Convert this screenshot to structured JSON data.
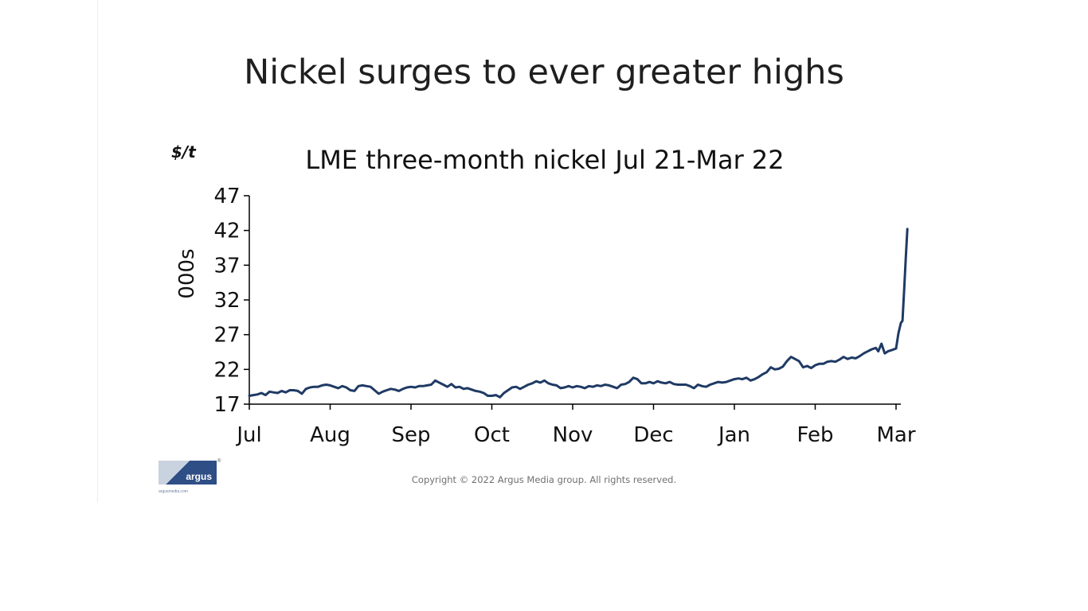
{
  "slide": {
    "title": "Nickel surges to ever greater highs",
    "copyright": "Copyright © 2022 Argus Media group. All rights reserved."
  },
  "logo": {
    "brand": "argus",
    "registered_mark": "®",
    "url": "argusmedia.com"
  },
  "colors": {
    "line": "#1f3a64",
    "axis": "#000000",
    "logo_blue": "#2f4e86"
  },
  "chart_data": {
    "type": "line",
    "title": "LME three-month nickel Jul 21-Mar 22",
    "unit_label": "$/t",
    "ylabel": "000s",
    "xlabel": "",
    "ylim": [
      17,
      47
    ],
    "yticks": [
      17,
      22,
      27,
      32,
      37,
      42,
      47
    ],
    "grid": false,
    "legend": "none",
    "x_tick_labels": [
      "Jul",
      "Aug",
      "Sep",
      "Oct",
      "Nov",
      "Dec",
      "Jan",
      "Feb",
      "Mar"
    ],
    "x_domain": [
      0,
      8.14
    ],
    "series": [
      {
        "values": [
          [
            0.0,
            18.2
          ],
          [
            0.05,
            18.3
          ],
          [
            0.1,
            18.4
          ],
          [
            0.15,
            18.6
          ],
          [
            0.2,
            18.3
          ],
          [
            0.25,
            18.8
          ],
          [
            0.3,
            18.7
          ],
          [
            0.35,
            18.6
          ],
          [
            0.4,
            18.9
          ],
          [
            0.45,
            18.7
          ],
          [
            0.5,
            19.0
          ],
          [
            0.55,
            19.0
          ],
          [
            0.6,
            18.9
          ],
          [
            0.65,
            18.5
          ],
          [
            0.7,
            19.2
          ],
          [
            0.75,
            19.4
          ],
          [
            0.8,
            19.5
          ],
          [
            0.85,
            19.5
          ],
          [
            0.9,
            19.7
          ],
          [
            0.95,
            19.8
          ],
          [
            1.0,
            19.7
          ],
          [
            1.05,
            19.5
          ],
          [
            1.1,
            19.3
          ],
          [
            1.15,
            19.6
          ],
          [
            1.2,
            19.4
          ],
          [
            1.25,
            19.0
          ],
          [
            1.3,
            18.9
          ],
          [
            1.35,
            19.6
          ],
          [
            1.4,
            19.7
          ],
          [
            1.45,
            19.6
          ],
          [
            1.5,
            19.5
          ],
          [
            1.55,
            19.0
          ],
          [
            1.6,
            18.5
          ],
          [
            1.65,
            18.8
          ],
          [
            1.7,
            19.0
          ],
          [
            1.75,
            19.2
          ],
          [
            1.8,
            19.1
          ],
          [
            1.85,
            18.9
          ],
          [
            1.9,
            19.2
          ],
          [
            1.95,
            19.4
          ],
          [
            2.0,
            19.5
          ],
          [
            2.05,
            19.4
          ],
          [
            2.1,
            19.6
          ],
          [
            2.15,
            19.6
          ],
          [
            2.2,
            19.7
          ],
          [
            2.25,
            19.8
          ],
          [
            2.3,
            20.4
          ],
          [
            2.35,
            20.1
          ],
          [
            2.4,
            19.8
          ],
          [
            2.45,
            19.5
          ],
          [
            2.5,
            19.9
          ],
          [
            2.55,
            19.4
          ],
          [
            2.6,
            19.5
          ],
          [
            2.65,
            19.2
          ],
          [
            2.7,
            19.3
          ],
          [
            2.75,
            19.1
          ],
          [
            2.8,
            18.9
          ],
          [
            2.85,
            18.8
          ],
          [
            2.9,
            18.6
          ],
          [
            2.95,
            18.2
          ],
          [
            3.0,
            18.2
          ],
          [
            3.05,
            18.3
          ],
          [
            3.1,
            18.0
          ],
          [
            3.15,
            18.6
          ],
          [
            3.2,
            19.0
          ],
          [
            3.25,
            19.4
          ],
          [
            3.3,
            19.5
          ],
          [
            3.35,
            19.2
          ],
          [
            3.4,
            19.5
          ],
          [
            3.45,
            19.8
          ],
          [
            3.5,
            20.0
          ],
          [
            3.55,
            20.3
          ],
          [
            3.6,
            20.1
          ],
          [
            3.65,
            20.4
          ],
          [
            3.7,
            20.0
          ],
          [
            3.75,
            19.8
          ],
          [
            3.8,
            19.7
          ],
          [
            3.85,
            19.3
          ],
          [
            3.9,
            19.4
          ],
          [
            3.95,
            19.6
          ],
          [
            4.0,
            19.4
          ],
          [
            4.05,
            19.6
          ],
          [
            4.1,
            19.5
          ],
          [
            4.15,
            19.3
          ],
          [
            4.2,
            19.6
          ],
          [
            4.25,
            19.5
          ],
          [
            4.3,
            19.7
          ],
          [
            4.35,
            19.6
          ],
          [
            4.4,
            19.8
          ],
          [
            4.45,
            19.7
          ],
          [
            4.5,
            19.5
          ],
          [
            4.55,
            19.3
          ],
          [
            4.6,
            19.8
          ],
          [
            4.65,
            19.9
          ],
          [
            4.7,
            20.2
          ],
          [
            4.75,
            20.8
          ],
          [
            4.8,
            20.6
          ],
          [
            4.85,
            20.0
          ],
          [
            4.9,
            20.0
          ],
          [
            4.95,
            20.2
          ],
          [
            5.0,
            20.0
          ],
          [
            5.05,
            20.3
          ],
          [
            5.1,
            20.1
          ],
          [
            5.15,
            20.0
          ],
          [
            5.2,
            20.2
          ],
          [
            5.25,
            19.9
          ],
          [
            5.3,
            19.8
          ],
          [
            5.35,
            19.8
          ],
          [
            5.4,
            19.8
          ],
          [
            5.45,
            19.6
          ],
          [
            5.5,
            19.3
          ],
          [
            5.55,
            19.8
          ],
          [
            5.6,
            19.6
          ],
          [
            5.65,
            19.5
          ],
          [
            5.7,
            19.8
          ],
          [
            5.75,
            20.0
          ],
          [
            5.8,
            20.2
          ],
          [
            5.85,
            20.1
          ],
          [
            5.9,
            20.2
          ],
          [
            5.95,
            20.4
          ],
          [
            6.0,
            20.6
          ],
          [
            6.05,
            20.7
          ],
          [
            6.1,
            20.6
          ],
          [
            6.15,
            20.8
          ],
          [
            6.2,
            20.4
          ],
          [
            6.25,
            20.6
          ],
          [
            6.3,
            20.9
          ],
          [
            6.35,
            21.3
          ],
          [
            6.4,
            21.6
          ],
          [
            6.45,
            22.3
          ],
          [
            6.5,
            22.0
          ],
          [
            6.55,
            22.1
          ],
          [
            6.6,
            22.4
          ],
          [
            6.65,
            23.2
          ],
          [
            6.7,
            23.8
          ],
          [
            6.75,
            23.5
          ],
          [
            6.8,
            23.2
          ],
          [
            6.85,
            22.3
          ],
          [
            6.9,
            22.5
          ],
          [
            6.95,
            22.2
          ],
          [
            7.0,
            22.6
          ],
          [
            7.05,
            22.8
          ],
          [
            7.1,
            22.8
          ],
          [
            7.15,
            23.1
          ],
          [
            7.2,
            23.2
          ],
          [
            7.25,
            23.1
          ],
          [
            7.3,
            23.4
          ],
          [
            7.35,
            23.8
          ],
          [
            7.4,
            23.5
          ],
          [
            7.45,
            23.7
          ],
          [
            7.5,
            23.6
          ],
          [
            7.55,
            23.9
          ],
          [
            7.6,
            24.3
          ],
          [
            7.65,
            24.6
          ],
          [
            7.7,
            24.9
          ],
          [
            7.75,
            25.1
          ],
          [
            7.78,
            24.6
          ],
          [
            7.82,
            25.7
          ],
          [
            7.86,
            24.3
          ],
          [
            7.9,
            24.6
          ],
          [
            7.95,
            24.8
          ],
          [
            8.0,
            25.0
          ],
          [
            8.03,
            27.2
          ],
          [
            8.06,
            28.7
          ],
          [
            8.08,
            29.0
          ],
          [
            8.1,
            33.5
          ],
          [
            8.12,
            38.0
          ],
          [
            8.14,
            42.2
          ]
        ]
      }
    ]
  }
}
